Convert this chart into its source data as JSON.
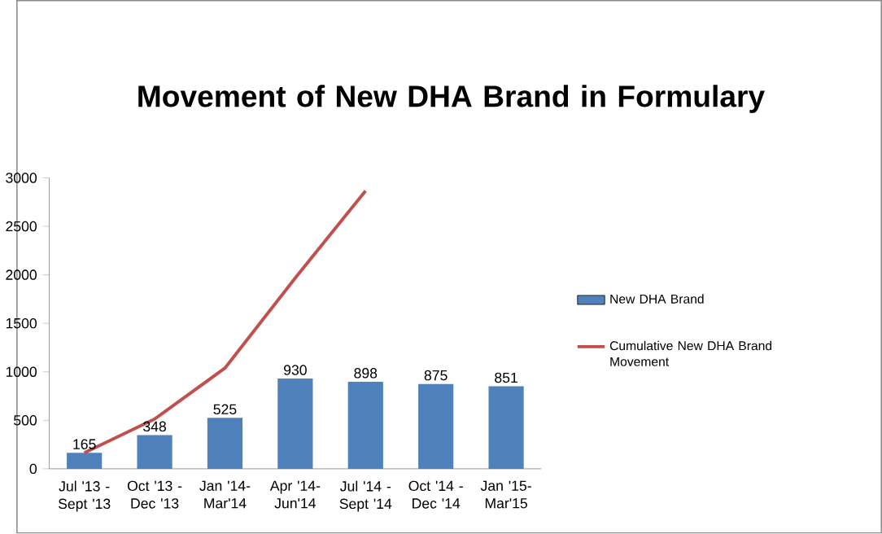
{
  "chart_data": {
    "type": "bar",
    "title": "Movement of New DHA Brand in Formulary",
    "categories": [
      "Jul '13 - Sept '13",
      "Oct '13 - Dec '13",
      "Jan '14- Mar'14",
      "Apr '14- Jun'14",
      "Jul '14 - Sept '14",
      "Oct '14 - Dec '14",
      "Jan '15- Mar'15"
    ],
    "series": [
      {
        "name": "New DHA Brand",
        "color": "#4f81bd",
        "values": [
          165,
          348,
          525,
          930,
          898,
          875,
          851
        ]
      },
      {
        "name": "Cumulative New DHA Brand Movement",
        "type": "line",
        "color": "#c0504d",
        "values": [
          165,
          513,
          1038,
          1968,
          2866,
          null,
          null
        ]
      }
    ],
    "ylim": [
      0,
      3000
    ],
    "yticks": [
      0,
      500,
      1000,
      1500,
      2000,
      2500,
      3000
    ],
    "value_labels": [
      "165",
      "348",
      "525",
      "930",
      "898",
      "875",
      "851"
    ],
    "grid": false,
    "legend": "right"
  }
}
